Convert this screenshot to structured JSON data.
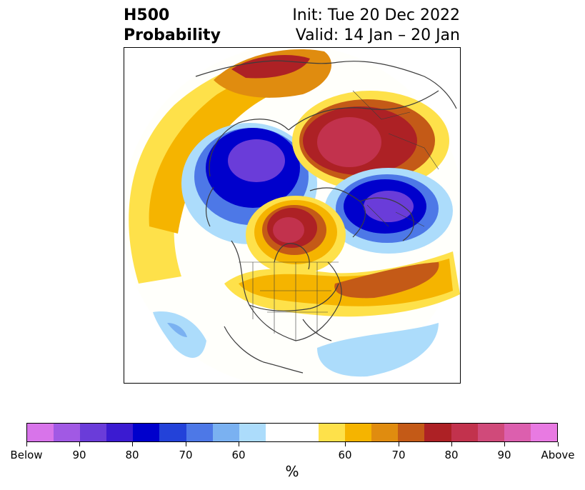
{
  "header": {
    "title_line1": "H500",
    "title_line2": "Probability",
    "init_text": "Init: Tue 20 Dec 2022",
    "valid_text": "Valid: 14 Jan – 20 Jan"
  },
  "colorbar": {
    "colors": [
      "#d874ea",
      "#a159e4",
      "#6a3cd9",
      "#3b1bd1",
      "#0000cc",
      "#2342d9",
      "#4d78e7",
      "#7ab1f1",
      "#acdcfb",
      "#ffffff",
      "#ffffff",
      "#fee14a",
      "#f5b400",
      "#e08c0f",
      "#c45a17",
      "#ad2125",
      "#c2324d",
      "#d04a7a",
      "#dc5fae",
      "#e87ae2"
    ],
    "tick_labels": [
      "Below",
      "90",
      "80",
      "70",
      "60",
      "60",
      "70",
      "80",
      "90",
      "Above"
    ],
    "unit": "%"
  },
  "map": {
    "projection": "polar stereographic",
    "anomaly_colors": {
      "above_high": "#c2324d",
      "above_mid": "#ad2125",
      "above_low": "#f5b400",
      "below_high": "#6a3cd9",
      "below_mid": "#0000cc",
      "below_low": "#acdcfb"
    }
  }
}
